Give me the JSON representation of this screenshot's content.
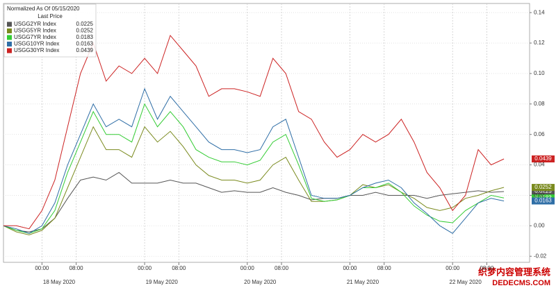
{
  "chart_data": {
    "type": "line",
    "legend_title": "Normalized As Of 05/15/2020",
    "legend_subtitle": "Last Price",
    "x": [
      -9,
      -6,
      -3,
      0,
      3,
      6,
      9,
      12,
      15,
      18,
      21,
      24,
      27,
      30,
      33,
      36,
      39,
      42,
      45,
      48,
      51,
      54,
      57,
      60,
      63,
      66,
      69,
      72,
      75,
      78,
      81,
      84,
      87,
      90,
      93,
      96,
      99,
      102,
      105,
      108
    ],
    "xlim": [
      -9,
      114
    ],
    "xticks": [
      {
        "value": 0,
        "label": "00:00"
      },
      {
        "value": 8,
        "label": "08:00"
      },
      {
        "value": 24,
        "label": "00:00"
      },
      {
        "value": 32,
        "label": "08:00"
      },
      {
        "value": 48,
        "label": "00:00"
      },
      {
        "value": 56,
        "label": "08:00"
      },
      {
        "value": 72,
        "label": "00:00"
      },
      {
        "value": 80,
        "label": "08:00"
      },
      {
        "value": 96,
        "label": "00:00"
      },
      {
        "value": 104,
        "label": "08:00"
      }
    ],
    "xticks_day": [
      {
        "value": 4,
        "label": "18 May 2020"
      },
      {
        "value": 28,
        "label": "19 May 2020"
      },
      {
        "value": 51,
        "label": "20 May 2020"
      },
      {
        "value": 75,
        "label": "21 May 2020"
      },
      {
        "value": 99,
        "label": "22 May 2020"
      }
    ],
    "ylim": [
      -0.024,
      0.146
    ],
    "yticks": [
      {
        "value": -0.02,
        "label": "-0.02"
      },
      {
        "value": 0,
        "label": "0.00"
      },
      {
        "value": 0.02,
        "label": "0.02"
      },
      {
        "value": 0.04,
        "label": "0.04"
      },
      {
        "value": 0.06,
        "label": "0.06"
      },
      {
        "value": 0.08,
        "label": "0.08"
      },
      {
        "value": 0.1,
        "label": "0.10"
      },
      {
        "value": 0.12,
        "label": "0.12"
      },
      {
        "value": 0.14,
        "label": "0.14"
      }
    ],
    "grid": true,
    "legend_position": "top-left",
    "series": [
      {
        "name": "USGG2YR Index",
        "last_price": 0.0225,
        "color": "#555555",
        "values": [
          0.0,
          -0.003,
          -0.004,
          -0.002,
          0.005,
          0.018,
          0.03,
          0.032,
          0.03,
          0.035,
          0.028,
          0.028,
          0.028,
          0.03,
          0.028,
          0.028,
          0.025,
          0.022,
          0.023,
          0.022,
          0.022,
          0.025,
          0.022,
          0.02,
          0.017,
          0.018,
          0.018,
          0.02,
          0.02,
          0.022,
          0.02,
          0.02,
          0.02,
          0.018,
          0.02,
          0.021,
          0.022,
          0.023,
          0.022,
          0.0225
        ]
      },
      {
        "name": "USGG5YR Index",
        "last_price": 0.0252,
        "color": "#7a8a1e",
        "values": [
          0.0,
          -0.004,
          -0.006,
          -0.003,
          0.005,
          0.025,
          0.045,
          0.065,
          0.05,
          0.05,
          0.045,
          0.065,
          0.055,
          0.062,
          0.052,
          0.04,
          0.033,
          0.03,
          0.03,
          0.028,
          0.03,
          0.04,
          0.045,
          0.03,
          0.016,
          0.016,
          0.017,
          0.02,
          0.027,
          0.025,
          0.027,
          0.022,
          0.018,
          0.012,
          0.01,
          0.012,
          0.018,
          0.02,
          0.023,
          0.0252
        ]
      },
      {
        "name": "USGG7YR Index",
        "last_price": 0.0183,
        "color": "#33cc33",
        "values": [
          0.0,
          -0.003,
          -0.005,
          -0.002,
          0.01,
          0.035,
          0.055,
          0.075,
          0.06,
          0.06,
          0.055,
          0.08,
          0.065,
          0.075,
          0.065,
          0.05,
          0.045,
          0.042,
          0.042,
          0.04,
          0.043,
          0.055,
          0.06,
          0.04,
          0.018,
          0.016,
          0.017,
          0.02,
          0.025,
          0.025,
          0.028,
          0.022,
          0.013,
          0.007,
          0.003,
          0.002,
          0.01,
          0.015,
          0.02,
          0.0183
        ]
      },
      {
        "name": "USGG10YR Index",
        "last_price": 0.0163,
        "color": "#2f6ea6",
        "values": [
          0.0,
          -0.002,
          -0.005,
          0.0,
          0.015,
          0.04,
          0.06,
          0.08,
          0.065,
          0.07,
          0.065,
          0.09,
          0.07,
          0.085,
          0.075,
          0.065,
          0.055,
          0.05,
          0.05,
          0.048,
          0.05,
          0.065,
          0.07,
          0.045,
          0.02,
          0.018,
          0.018,
          0.02,
          0.025,
          0.028,
          0.03,
          0.025,
          0.015,
          0.008,
          0.0,
          -0.005,
          0.005,
          0.015,
          0.018,
          0.0163
        ]
      },
      {
        "name": "USGG30YR Index",
        "last_price": 0.0439,
        "color": "#cc2222",
        "values": [
          0.0,
          0.0,
          -0.002,
          0.01,
          0.03,
          0.065,
          0.1,
          0.12,
          0.095,
          0.105,
          0.1,
          0.11,
          0.1,
          0.125,
          0.115,
          0.105,
          0.085,
          0.09,
          0.09,
          0.088,
          0.085,
          0.11,
          0.1,
          0.075,
          0.07,
          0.055,
          0.045,
          0.05,
          0.06,
          0.055,
          0.06,
          0.07,
          0.055,
          0.035,
          0.025,
          0.01,
          0.02,
          0.05,
          0.04,
          0.0439
        ]
      }
    ],
    "watermark": "织梦内容管理系统",
    "watermark_sub": "DEDECMS.COM"
  }
}
